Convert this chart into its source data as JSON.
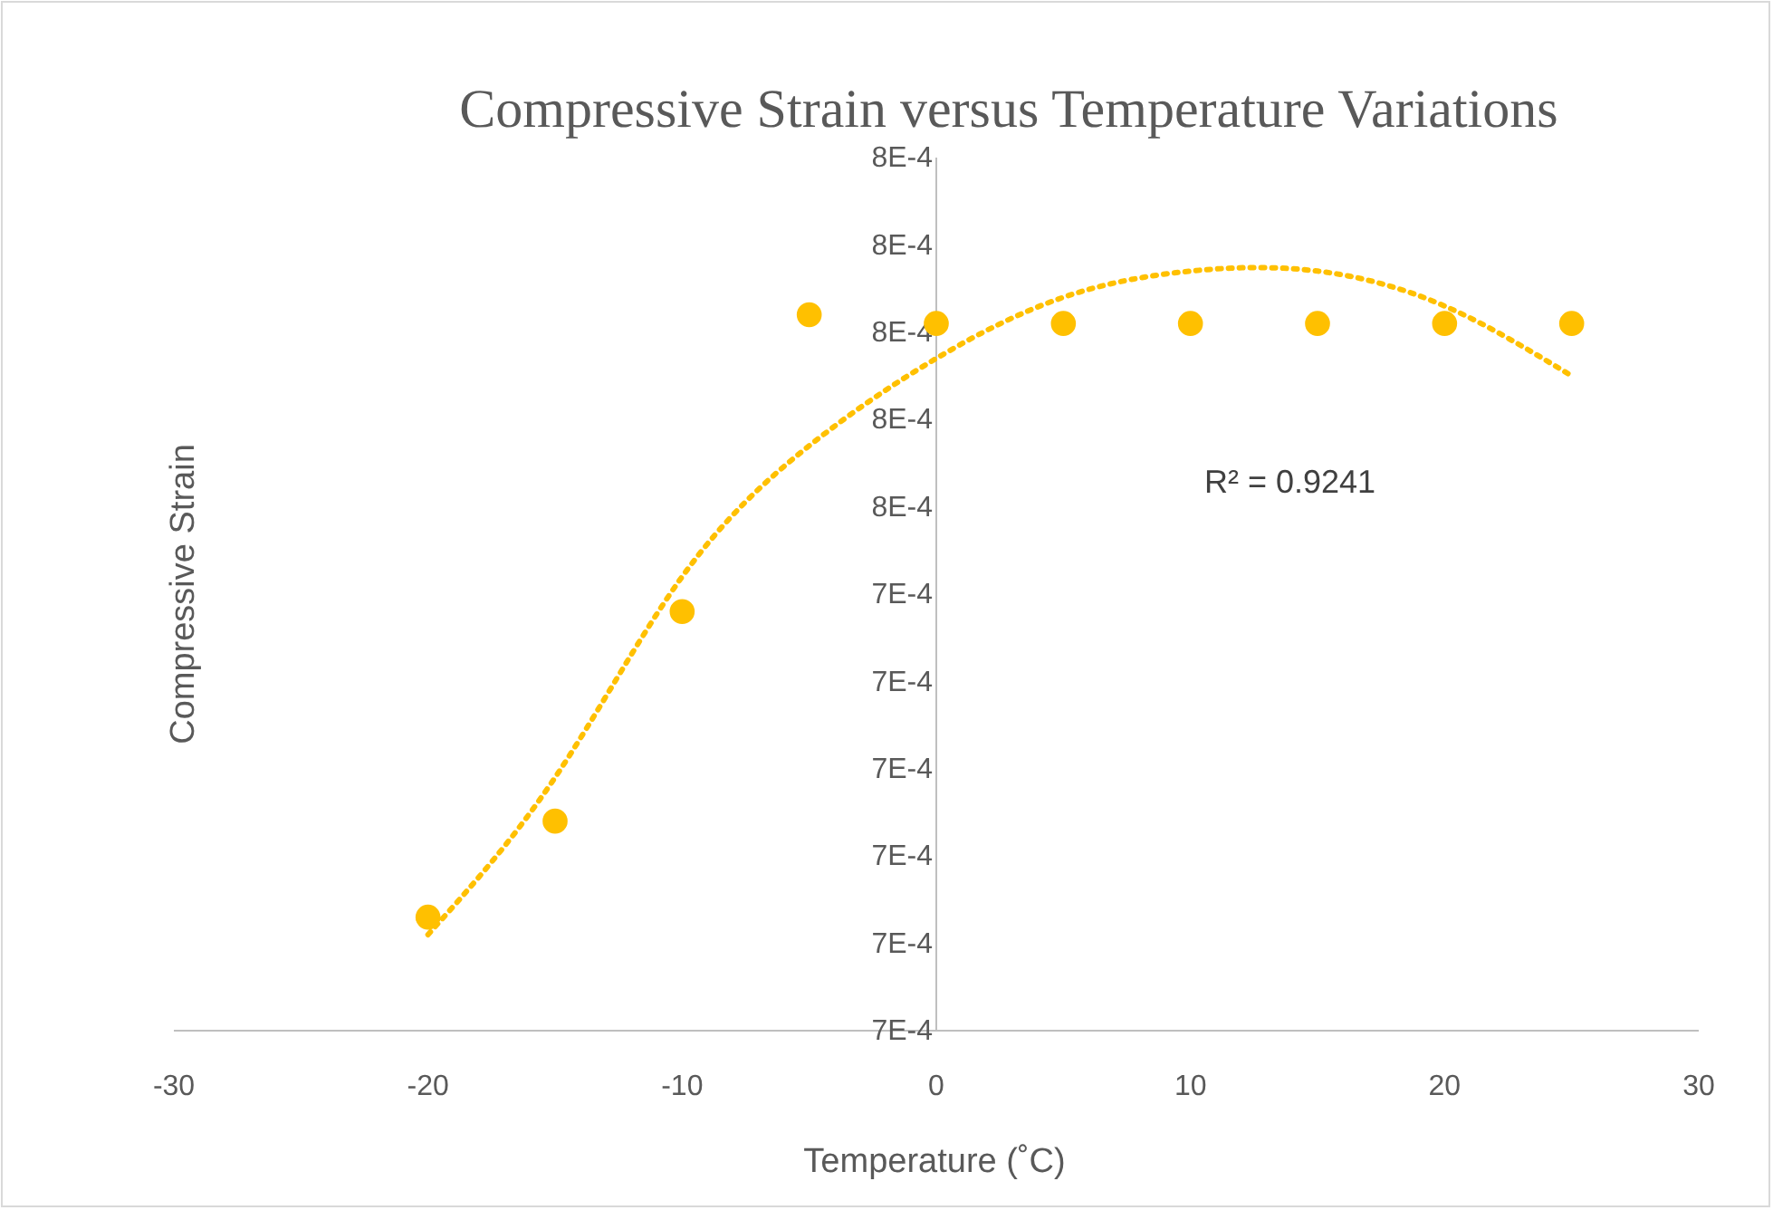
{
  "chart_data": {
    "type": "scatter",
    "title": "Compressive  Strain versus Temperature Variations",
    "xlabel": "Temperature (˚C)",
    "ylabel": "Compressive Strain",
    "xlim": [
      -30,
      30
    ],
    "xticks": [
      -30,
      -20,
      -10,
      0,
      10,
      20,
      30
    ],
    "ylim": [
      0.0007,
      0.0008
    ],
    "yticks": [
      {
        "value": 0.0007,
        "label": "7E-4"
      },
      {
        "value": 0.00071,
        "label": "7E-4"
      },
      {
        "value": 0.00072,
        "label": "7E-4"
      },
      {
        "value": 0.00073,
        "label": "7E-4"
      },
      {
        "value": 0.00074,
        "label": "7E-4"
      },
      {
        "value": 0.00075,
        "label": "7E-4"
      },
      {
        "value": 0.00076,
        "label": "8E-4"
      },
      {
        "value": 0.00077,
        "label": "8E-4"
      },
      {
        "value": 0.00078,
        "label": "8E-4"
      },
      {
        "value": 0.00079,
        "label": "8E-4"
      },
      {
        "value": 0.0008,
        "label": "8E-4"
      }
    ],
    "grid": false,
    "series": [
      {
        "type": "scatter",
        "color": "#ffc000",
        "marker": "circle",
        "x": [
          -20,
          -15,
          -10,
          -5,
          0,
          5,
          10,
          15,
          20,
          25
        ],
        "values": [
          0.000713,
          0.000724,
          0.000748,
          0.000782,
          0.000781,
          0.000781,
          0.000781,
          0.000781,
          0.000781,
          0.000781
        ]
      },
      {
        "type": "line",
        "color": "#ffc000",
        "marker": "none",
        "line_style": "dotted",
        "x": [
          -20,
          -15,
          -10,
          -5,
          0,
          5,
          10,
          15,
          20,
          25
        ],
        "values": [
          0.000711,
          0.000729,
          0.000752,
          0.000767,
          0.000777,
          0.000784,
          0.000787,
          0.000787,
          0.000783,
          0.000775
        ]
      }
    ],
    "annotations": [
      "R² = 0.9241"
    ]
  }
}
